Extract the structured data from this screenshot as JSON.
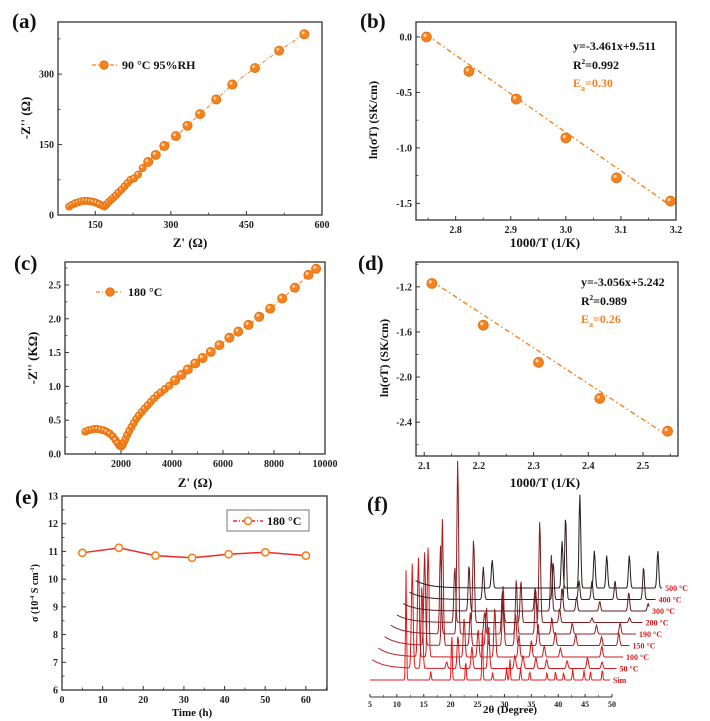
{
  "figure": {
    "colors": {
      "orange": "#f58220",
      "orange_dark": "#e06a00",
      "red_line": "#ee2a2a",
      "axis": "#333333",
      "xrd_colors": [
        "#e41a1c",
        "#d61b1e",
        "#c21d20",
        "#a81f22",
        "#8f2024",
        "#7a2022",
        "#5e1d1e",
        "#3c1c1d",
        "#1c1c1c"
      ]
    }
  },
  "chart_data": [
    {
      "id": "a",
      "panel_label": "(a)",
      "type": "scatter",
      "title": "",
      "xlabel": "Z' (Ω)",
      "ylabel": "-Z'' (Ω)",
      "xlim": [
        76,
        600
      ],
      "ylim": [
        0,
        411
      ],
      "xticks": [
        150,
        300,
        450,
        600
      ],
      "yticks": [
        0,
        150,
        300
      ],
      "grid": false,
      "legend": {
        "position": "top-left",
        "entries": [
          "90 °C 95%RH"
        ]
      },
      "series": [
        {
          "name": "90 °C 95%RH",
          "x": [
            98,
            104,
            110,
            116,
            122,
            128,
            134,
            140,
            146,
            152,
            158,
            164,
            168,
            172,
            176,
            181,
            186,
            191,
            196,
            202,
            208,
            214,
            220,
            227,
            235,
            244,
            255,
            270,
            287,
            310,
            333,
            358,
            390,
            422,
            467,
            515,
            565
          ],
          "y": [
            18,
            22,
            25,
            27,
            29,
            30,
            30,
            29,
            28,
            26,
            23,
            20,
            18,
            22,
            27,
            32,
            37,
            42,
            48,
            54,
            61,
            68,
            75,
            78,
            86,
            100,
            113,
            128,
            147,
            168,
            190,
            215,
            246,
            278,
            313,
            350,
            385
          ]
        }
      ]
    },
    {
      "id": "b",
      "panel_label": "(b)",
      "type": "scatter",
      "title": "",
      "xlabel": "1000/T (1/K)",
      "ylabel": "ln(σT) (SK/cm)",
      "xlim": [
        2.728,
        3.2
      ],
      "ylim": [
        -1.65,
        0.135
      ],
      "xticks": [
        2.8,
        2.9,
        3.0,
        3.1,
        3.2
      ],
      "yticks": [
        0.0,
        -0.5,
        -1.0,
        -1.5
      ],
      "grid": false,
      "series": [
        {
          "name": "data",
          "x": [
            2.747,
            2.824,
            2.91,
            3.0,
            3.092,
            3.19
          ],
          "y": [
            0.0,
            -0.31,
            -0.56,
            -0.91,
            -1.27,
            -1.48
          ]
        }
      ],
      "fit": {
        "slope": -3.461,
        "intercept": 9.511,
        "x_range": [
          2.747,
          3.19
        ]
      },
      "annotations": {
        "equation": "y=-3.461x+9.511",
        "r2_prefix": "R",
        "r2_sup": "2",
        "r2_value": "=0.992",
        "ea_prefix": "E",
        "ea_sub": "a",
        "ea_value": "=0.30"
      }
    },
    {
      "id": "c",
      "panel_label": "(c)",
      "type": "scatter",
      "title": "",
      "xlabel": "Z' (Ω)",
      "ylabel": "-Z'' (KΩ)",
      "xlim": [
        -196,
        10000
      ],
      "ylim": [
        0,
        2.84
      ],
      "xticks": [
        2000,
        4000,
        6000,
        8000,
        10000
      ],
      "yticks": [
        0.0,
        0.5,
        1.0,
        1.5,
        2.0,
        2.5
      ],
      "grid": false,
      "legend": {
        "position": "top-left",
        "entries": [
          "180 °C"
        ]
      },
      "series": [
        {
          "name": "180 °C",
          "x": [
            600,
            720,
            840,
            960,
            1080,
            1200,
            1320,
            1440,
            1560,
            1680,
            1780,
            1870,
            1950,
            2010,
            2060,
            2110,
            2170,
            2240,
            2320,
            2410,
            2500,
            2600,
            2700,
            2810,
            2920,
            3040,
            3160,
            3290,
            3420,
            3560,
            3720,
            3890,
            4120,
            4370,
            4620,
            4910,
            5200,
            5520,
            5860,
            6250,
            6600,
            7000,
            7420,
            7850,
            8320,
            8820,
            9350,
            9650
          ],
          "y": [
            0.33,
            0.35,
            0.36,
            0.37,
            0.37,
            0.36,
            0.35,
            0.33,
            0.3,
            0.26,
            0.21,
            0.16,
            0.12,
            0.11,
            0.13,
            0.17,
            0.22,
            0.28,
            0.34,
            0.4,
            0.46,
            0.52,
            0.57,
            0.62,
            0.67,
            0.72,
            0.77,
            0.82,
            0.87,
            0.91,
            0.96,
            1.01,
            1.09,
            1.17,
            1.25,
            1.34,
            1.42,
            1.51,
            1.61,
            1.72,
            1.81,
            1.91,
            2.03,
            2.15,
            2.3,
            2.46,
            2.65,
            2.74
          ]
        }
      ]
    },
    {
      "id": "d",
      "panel_label": "(d)",
      "type": "scatter",
      "title": "",
      "xlabel": "1000/T (1/K)",
      "ylabel": "ln(σT) (SK/cm)",
      "xlim": [
        2.085,
        2.564
      ],
      "ylim": [
        -2.7,
        -0.98
      ],
      "xticks": [
        2.1,
        2.2,
        2.3,
        2.4,
        2.5
      ],
      "yticks": [
        -1.2,
        -1.6,
        -2.0,
        -2.4
      ],
      "grid": false,
      "series": [
        {
          "name": "data",
          "x": [
            2.114,
            2.208,
            2.309,
            2.421,
            2.545
          ],
          "y": [
            -1.17,
            -1.54,
            -1.87,
            -2.19,
            -2.48
          ]
        }
      ],
      "fit": {
        "slope": -3.056,
        "intercept": 5.242,
        "x_range": [
          2.114,
          2.545
        ]
      },
      "annotations": {
        "equation": "y=-3.056x+5.242",
        "r2_prefix": "R",
        "r2_sup": "2",
        "r2_value": "=0.989",
        "ea_prefix": "E",
        "ea_sub": "a",
        "ea_value": "=0.26"
      }
    },
    {
      "id": "e",
      "panel_label": "(e)",
      "type": "line",
      "title": "",
      "xlabel": "Time (h)",
      "ylabel_prefix": "σ (10",
      "ylabel_sup": "-4",
      "ylabel_mid": " S cm",
      "ylabel_sup2": "-1",
      "ylabel_suffix": ")",
      "xlim": [
        0,
        65.2
      ],
      "ylim": [
        6,
        13
      ],
      "xticks": [
        0,
        10,
        20,
        30,
        40,
        50,
        60
      ],
      "yticks": [
        6,
        7,
        8,
        9,
        10,
        11,
        12,
        13
      ],
      "grid": false,
      "legend": {
        "position": "top-right",
        "entries": [
          "180 °C"
        ]
      },
      "series": [
        {
          "name": "180 °C",
          "x": [
            5,
            14,
            23,
            32,
            41,
            50,
            60
          ],
          "y": [
            10.95,
            11.13,
            10.85,
            10.77,
            10.9,
            10.97,
            10.85
          ]
        }
      ]
    },
    {
      "id": "f",
      "panel_label": "(f)",
      "type": "line",
      "title": "",
      "xlabel": "2θ (Degree)",
      "ylabel": "",
      "xlim": [
        5,
        50
      ],
      "xticks": [
        5,
        10,
        15,
        20,
        25,
        30,
        35,
        40,
        45,
        50
      ],
      "grid": false,
      "legend": {
        "position": "right",
        "entries": [
          "Sim",
          "50 °C",
          "100 °C",
          "150 °C",
          "190 °C",
          "200 °C",
          "300 °C",
          "400 °C",
          "500 °C"
        ]
      },
      "series": [
        {
          "name": "Sim",
          "peaks": [
            [
              11.7,
              1.0
            ],
            [
              13.5,
              0.0
            ],
            [
              16.3,
              0.08
            ],
            [
              20.2,
              0.45
            ],
            [
              22.8,
              0.18
            ],
            [
              25.9,
              0.52
            ],
            [
              27.8,
              0.07
            ],
            [
              30.4,
              0.12
            ],
            [
              31.0,
              0.2
            ],
            [
              33.0,
              0.12
            ],
            [
              34.7,
              0.08
            ],
            [
              37.9,
              0.07
            ],
            [
              39.5,
              0.08
            ],
            [
              41.0,
              0.07
            ],
            [
              42.7,
              0.1
            ],
            [
              44.8,
              0.09
            ],
            [
              46.0,
              0.08
            ],
            [
              48.2,
              0.1
            ]
          ]
        },
        {
          "name": "50 °C",
          "peaks": [
            [
              11.7,
              0.95
            ],
            [
              13.5,
              0.75
            ],
            [
              18.1,
              0.06
            ],
            [
              20.2,
              0.3
            ],
            [
              22.8,
              0.2
            ],
            [
              25.9,
              0.4
            ],
            [
              30.8,
              0.12
            ],
            [
              32.3,
              0.12
            ],
            [
              34.7,
              0.1
            ],
            [
              36.7,
              0.08
            ],
            [
              40.5,
              0.07
            ],
            [
              44.3,
              0.1
            ],
            [
              47.0,
              0.06
            ]
          ]
        },
        {
          "name": "100 °C",
          "peaks": [
            [
              11.7,
              0.9
            ],
            [
              13.5,
              1.0
            ],
            [
              20.2,
              0.35
            ],
            [
              22.8,
              0.25
            ],
            [
              25.9,
              0.45
            ],
            [
              30.4,
              0.2
            ],
            [
              32.7,
              0.15
            ],
            [
              35.1,
              0.1
            ],
            [
              38.1,
              0.08
            ],
            [
              45.8,
              0.1
            ]
          ]
        },
        {
          "name": "150 °C",
          "peaks": [
            [
              11.7,
              0.85
            ],
            [
              15.0,
              1.15
            ],
            [
              20.2,
              0.3
            ],
            [
              23.2,
              0.35
            ],
            [
              26.3,
              0.55
            ],
            [
              28.6,
              0.3
            ],
            [
              32.8,
              0.2
            ],
            [
              36.0,
              0.12
            ],
            [
              39.8,
              0.1
            ],
            [
              44.6,
              0.08
            ],
            [
              47.8,
              0.12
            ]
          ]
        },
        {
          "name": "190 °C",
          "peaks": [
            [
              13.5,
              0.8
            ],
            [
              16.7,
              1.6
            ],
            [
              21.7,
              0.2
            ],
            [
              25.0,
              0.4
            ],
            [
              27.6,
              0.5
            ],
            [
              31.2,
              0.4
            ],
            [
              34.2,
              0.15
            ],
            [
              38.0,
              0.1
            ],
            [
              42.5,
              0.08
            ],
            [
              46.9,
              0.1
            ]
          ]
        },
        {
          "name": "200 °C",
          "peaks": [
            [
              15.0,
              0.6
            ],
            [
              18.5,
              0.9
            ],
            [
              24.0,
              0.2
            ],
            [
              27.3,
              0.45
            ],
            [
              30.8,
              1.1
            ],
            [
              34.5,
              0.15
            ],
            [
              40.5,
              0.05
            ],
            [
              47.5,
              0.05
            ]
          ]
        },
        {
          "name": "300 °C",
          "peaks": [
            [
              16.5,
              0.5
            ],
            [
              28.8,
              0.25
            ],
            [
              31.8,
              0.6
            ],
            [
              33.8,
              0.25
            ],
            [
              36.5,
              0.15
            ],
            [
              40.8,
              0.1
            ],
            [
              46.2,
              0.2
            ],
            [
              49.8,
              0.08
            ]
          ]
        },
        {
          "name": "400 °C",
          "peaks": [
            [
              18.0,
              0.35
            ],
            [
              31.0,
              0.4
            ],
            [
              33.3,
              0.9
            ],
            [
              35.8,
              0.2
            ],
            [
              38.2,
              0.2
            ],
            [
              42.5,
              0.2
            ],
            [
              47.8,
              0.35
            ],
            [
              51.5,
              0.1
            ]
          ]
        },
        {
          "name": "500 °C",
          "peaks": [
            [
              18.5,
              0.3
            ],
            [
              31.5,
              0.5
            ],
            [
              34.8,
              1.0
            ],
            [
              37.5,
              0.4
            ],
            [
              39.8,
              0.35
            ],
            [
              44.0,
              0.35
            ],
            [
              49.3,
              0.4
            ],
            [
              53.0,
              0.05
            ],
            [
              55.5,
              0.07
            ]
          ]
        }
      ]
    }
  ]
}
